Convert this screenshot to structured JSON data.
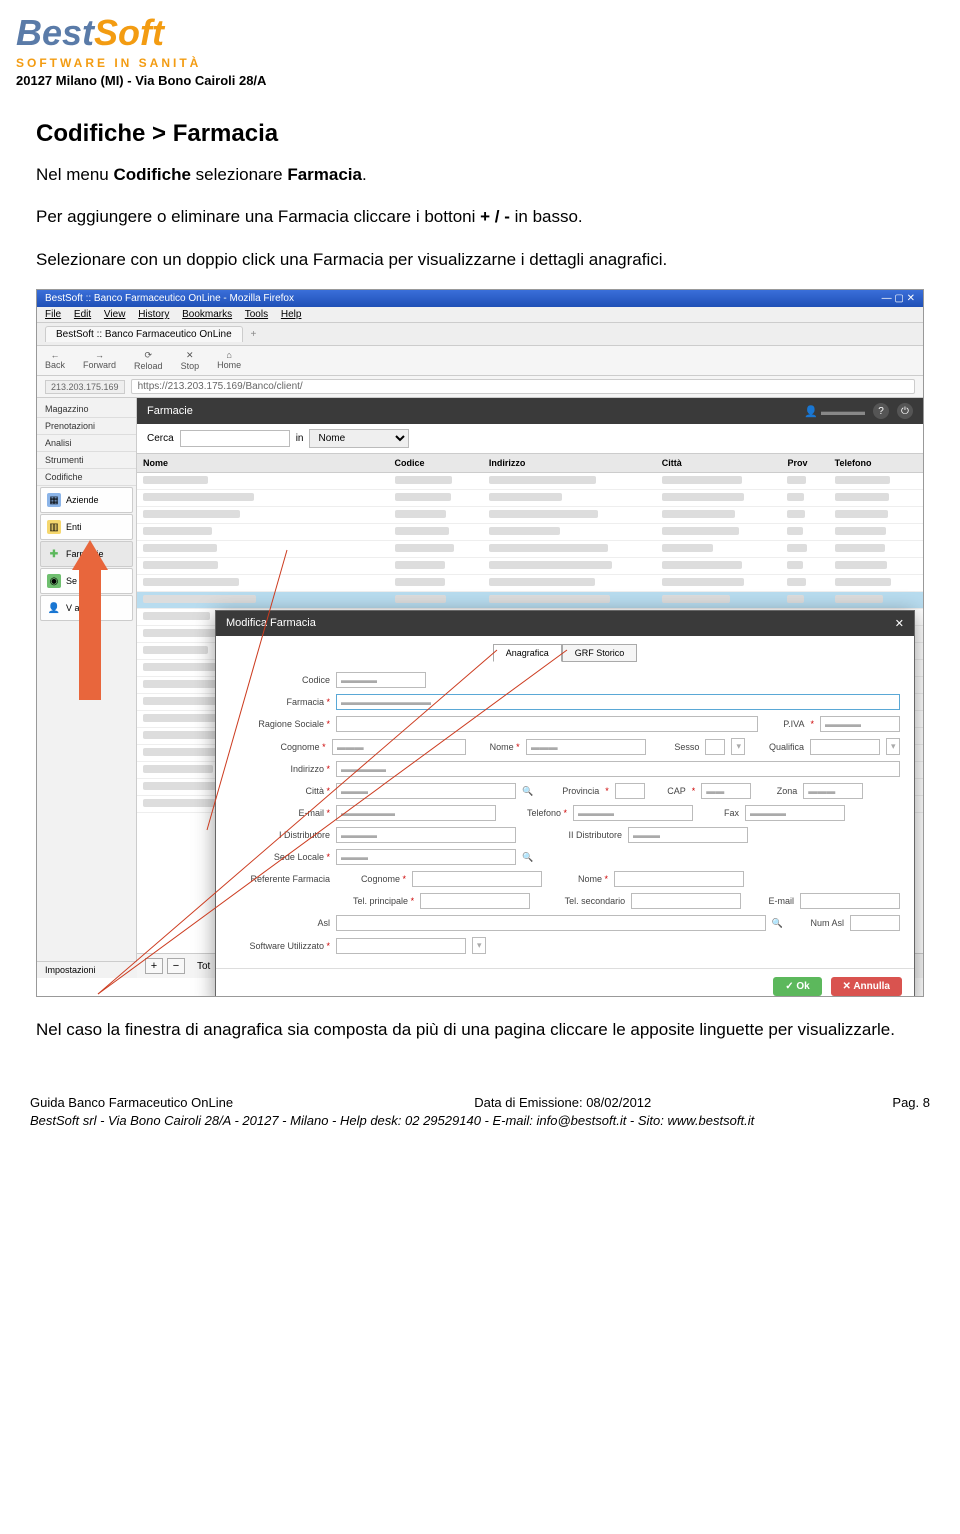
{
  "colors": {
    "logo_best": "#5a7ba8",
    "logo_soft": "#f39c12",
    "logo_tag": "#f39c12",
    "arrow": "#e8663c",
    "line": "#cc3b1f",
    "modal_header": "#3a3a3a",
    "ok": "#5cb85c",
    "cancel": "#d9534f"
  },
  "header": {
    "logo_best": "Best",
    "logo_soft": "Soft",
    "tagline": "SOFTWARE IN SANITÀ",
    "address": "20127 Milano (MI) - Via Bono Cairoli 28/A"
  },
  "content": {
    "h2": "Codifiche > Farmacia",
    "p1_a": "Nel menu ",
    "p1_b": "Codifiche",
    "p1_c": " selezionare ",
    "p1_d": "Farmacia",
    "p1_e": ".",
    "p2_a": "Per aggiungere o eliminare una Farmacia cliccare i bottoni ",
    "p2_b": "+ / -",
    "p2_c": " in basso.",
    "p3": "Selezionare con un doppio click una Farmacia per visualizzarne i dettagli anagrafici.",
    "p4": "Nel caso la finestra di anagrafica sia composta da più di una pagina cliccare le apposite linguette per visualizzarle."
  },
  "chrome": {
    "title": "BestSoft :: Banco Farmaceutico OnLine - Mozilla Firefox",
    "menu": [
      "File",
      "Edit",
      "View",
      "History",
      "Bookmarks",
      "Tools",
      "Help"
    ],
    "tab": "BestSoft :: Banco Farmaceutico OnLine",
    "nav": [
      "Back",
      "Forward",
      "Reload",
      "Stop",
      "Home"
    ],
    "nav_icons": [
      "←",
      "→",
      "⟳",
      "✕",
      "⌂"
    ],
    "host": "213.203.175.169",
    "url": "https://213.203.175.169/Banco/client/"
  },
  "sidebar": {
    "items": [
      "Magazzino",
      "Prenotazioni",
      "Analisi",
      "Strumenti",
      "Codifiche"
    ],
    "subs": [
      {
        "label": "Aziende",
        "color": "#8bb4e8"
      },
      {
        "label": "Enti",
        "color": "#f5d76e"
      },
      {
        "label": "Farmacie",
        "color": "#5cb85c",
        "active": true
      },
      {
        "label": "Se        cali",
        "color": "#6fbf6f"
      },
      {
        "label": "V          ari",
        "color": "#f0a050"
      }
    ],
    "bottom": "Impostazioni",
    "footer_label": "Tot"
  },
  "mainbar": {
    "title": "Farmacie",
    "help": "?"
  },
  "search": {
    "label": "Cerca",
    "in": "in",
    "field": "Nome"
  },
  "table": {
    "cols": [
      "Nome",
      "Codice",
      "Indirizzo",
      "Città",
      "Prov",
      "Telefono"
    ],
    "rows": 20,
    "selected": 7
  },
  "modal": {
    "title": "Modifica Farmacia",
    "tabs": [
      "Anagrafica",
      "GRF Storico"
    ],
    "fields": {
      "codice": "Codice",
      "farmacia": "Farmacia",
      "ragione": "Ragione Sociale",
      "piva": "P.IVA",
      "cognome": "Cognome",
      "nome": "Nome",
      "sesso": "Sesso",
      "qualifica": "Qualifica",
      "indirizzo": "Indirizzo",
      "citta": "Città",
      "provincia": "Provincia",
      "cap": "CAP",
      "zona": "Zona",
      "email": "E-mail",
      "telefono": "Telefono",
      "fax": "Fax",
      "dist1": "I Distributore",
      "dist2": "II Distributore",
      "sede": "Sede Locale",
      "ref": "Referente Farmacia",
      "telp": "Tel. principale",
      "tels": "Tel. secondario",
      "asl": "Asl",
      "numasl": "Num Asl",
      "soft": "Software Utilizzato"
    },
    "ok": "Ok",
    "cancel": "Annulla"
  },
  "footer": {
    "left": "Guida Banco Farmaceutico OnLine",
    "center": "Data di Emissione: 08/02/2012",
    "right": "Pag. 8",
    "line2": "BestSoft srl - Via Bono Cairoli 28/A - 20127 - Milano - Help desk: 02 29529140 - E-mail: info@bestsoft.it - Sito: www.bestsoft.it"
  }
}
